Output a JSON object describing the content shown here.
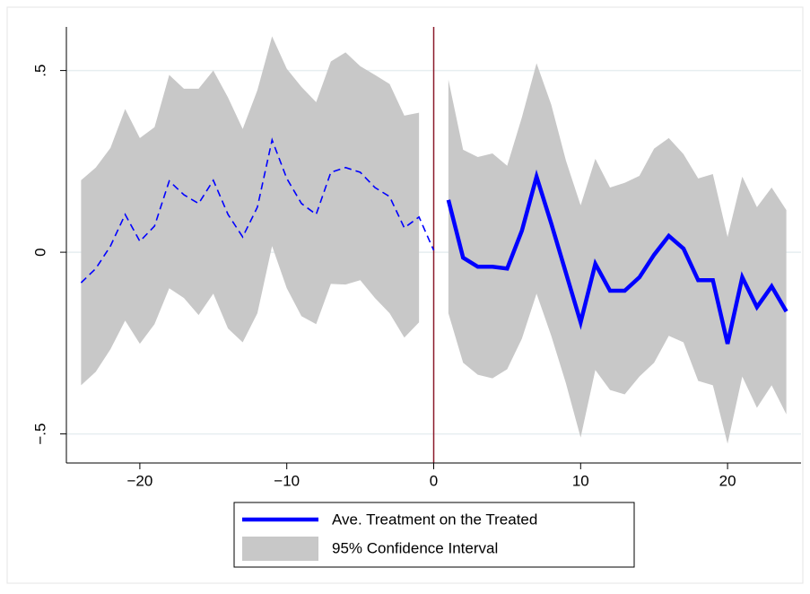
{
  "chart_data": {
    "type": "line",
    "x": [
      -24,
      -23,
      -22,
      -21,
      -20,
      -19,
      -18,
      -17,
      -16,
      -15,
      -14,
      -13,
      -12,
      -11,
      -10,
      -9,
      -8,
      -7,
      -6,
      -5,
      -4,
      -3,
      -2,
      -1,
      0,
      1,
      2,
      3,
      4,
      5,
      6,
      7,
      8,
      9,
      10,
      11,
      12,
      13,
      14,
      15,
      16,
      17,
      18,
      19,
      20,
      21,
      22,
      23,
      24
    ],
    "series": [
      {
        "color": "#0000ff",
        "style": "dashed",
        "values": [
          -0.084,
          -0.045,
          0.017,
          0.104,
          0.03,
          0.072,
          0.196,
          0.158,
          0.134,
          0.198,
          0.104,
          0.042,
          0.124,
          0.309,
          0.203,
          0.134,
          0.104,
          0.22,
          0.233,
          0.22,
          0.178,
          0.153,
          0.067,
          0.097,
          0.005,
          null,
          null,
          null,
          null,
          null,
          null,
          null,
          null,
          null,
          null,
          null,
          null,
          null,
          null,
          null,
          null,
          null,
          null,
          null,
          null,
          null,
          null,
          null,
          null
        ]
      },
      {
        "name": "Ave. Treatment on the Treated",
        "color": "#0000ff",
        "style": "solid",
        "values": [
          null,
          null,
          null,
          null,
          null,
          null,
          null,
          null,
          null,
          null,
          null,
          null,
          null,
          null,
          null,
          null,
          null,
          null,
          null,
          null,
          null,
          null,
          null,
          null,
          null,
          0.144,
          -0.015,
          -0.04,
          -0.04,
          -0.045,
          0.059,
          0.208,
          0.079,
          -0.057,
          -0.193,
          -0.032,
          -0.106,
          -0.106,
          -0.069,
          -0.007,
          0.045,
          0.01,
          -0.077,
          -0.077,
          -0.252,
          -0.069,
          -0.151,
          -0.094,
          -0.163
        ]
      }
    ],
    "band": {
      "name": "95% Confidence Interval",
      "color": "#c8c8c8",
      "upper": [
        0.198,
        0.233,
        0.287,
        0.394,
        0.314,
        0.344,
        0.488,
        0.45,
        0.45,
        0.5,
        0.426,
        0.339,
        0.446,
        0.594,
        0.505,
        0.455,
        0.413,
        0.525,
        0.55,
        0.512,
        0.488,
        0.463,
        0.376,
        0.384,
        null,
        0.475,
        0.282,
        0.262,
        0.272,
        0.238,
        0.371,
        0.52,
        0.406,
        0.252,
        0.129,
        0.257,
        0.178,
        0.191,
        0.21,
        0.285,
        0.314,
        0.27,
        0.203,
        0.215,
        0.042,
        0.208,
        0.124,
        0.178,
        0.116
      ],
      "lower": [
        -0.366,
        -0.329,
        -0.267,
        -0.188,
        -0.252,
        -0.198,
        -0.099,
        -0.126,
        -0.173,
        -0.114,
        -0.21,
        -0.248,
        -0.168,
        0.017,
        -0.099,
        -0.176,
        -0.198,
        -0.087,
        -0.089,
        -0.077,
        -0.126,
        -0.168,
        -0.235,
        -0.193,
        null,
        -0.168,
        -0.304,
        -0.337,
        -0.347,
        -0.322,
        -0.238,
        -0.114,
        -0.23,
        -0.361,
        -0.51,
        -0.324,
        -0.379,
        -0.391,
        -0.342,
        -0.304,
        -0.23,
        -0.248,
        -0.354,
        -0.366,
        -0.527,
        -0.342,
        -0.428,
        -0.366,
        -0.446
      ]
    },
    "vline": 0,
    "vline_color": "#8b1a2b",
    "xlim": [
      -25,
      25
    ],
    "ylim": [
      -0.58,
      0.62
    ],
    "xticks": [
      {
        "value": -20,
        "label": "−20"
      },
      {
        "value": -10,
        "label": "−10"
      },
      0,
      10,
      20
    ],
    "yticks": [
      {
        "value": -0.5,
        "label": "−.5"
      },
      0,
      {
        "value": 0.5,
        "label": ".5"
      }
    ],
    "grid": true
  }
}
